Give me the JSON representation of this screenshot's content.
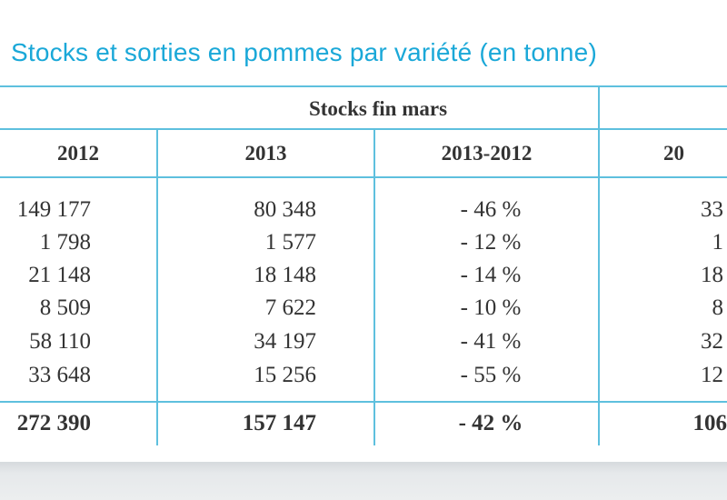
{
  "title": "Stocks et sorties en pommes par variété (en tonne)",
  "group_header": "Stocks fin mars",
  "columns": [
    "2012",
    "2013",
    "2013-2012",
    "20"
  ],
  "rows": [
    [
      "149 177",
      "80 348",
      "- 46 %",
      "33"
    ],
    [
      "1 798",
      "1 577",
      "- 12 %",
      "1"
    ],
    [
      "21 148",
      "18 148",
      "- 14 %",
      "18"
    ],
    [
      "8 509",
      "7 622",
      "- 10 %",
      "8"
    ],
    [
      "58 110",
      "34 197",
      "- 41 %",
      "32"
    ],
    [
      "33 648",
      "15 256",
      "- 55 %",
      "12"
    ]
  ],
  "total": [
    "272 390",
    "157 147",
    "- 42 %",
    "106"
  ],
  "colors": {
    "title": "#1aa8d8",
    "grid": "#5ec0de",
    "text": "#333333"
  }
}
